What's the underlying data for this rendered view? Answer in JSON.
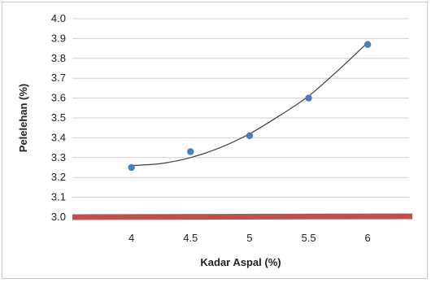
{
  "chart_data": {
    "type": "scatter",
    "xlabel": "Kadar Aspal (%)",
    "ylabel": "Pelelehan (%)",
    "xlim": [
      3.5,
      6.35
    ],
    "ylim": [
      3.0,
      4.0
    ],
    "x_ticks": [
      "4",
      "4.5",
      "5",
      "5.5",
      "6"
    ],
    "y_ticks": [
      "3.0",
      "3.1",
      "3.2",
      "3.3",
      "3.4",
      "3.5",
      "3.6",
      "3.7",
      "3.8",
      "3.9",
      "4.0"
    ],
    "grid": true,
    "legend": "none",
    "series": [
      {
        "points": [
          [
            4,
            3.25
          ],
          [
            4.5,
            3.33
          ],
          [
            5,
            3.41
          ],
          [
            5.5,
            3.6
          ],
          [
            6,
            3.87
          ]
        ],
        "color": "#4a7ebb"
      }
    ],
    "trendline": {
      "type": "polynomial",
      "points": [
        [
          4,
          3.26
        ],
        [
          4.25,
          3.27
        ],
        [
          4.5,
          3.3
        ],
        [
          4.75,
          3.35
        ],
        [
          5,
          3.42
        ],
        [
          5.25,
          3.51
        ],
        [
          5.5,
          3.61
        ],
        [
          5.75,
          3.74
        ],
        [
          6,
          3.88
        ]
      ],
      "color": "#404040"
    },
    "reference_line": {
      "y": 3.0,
      "color": "#c0504d"
    }
  }
}
